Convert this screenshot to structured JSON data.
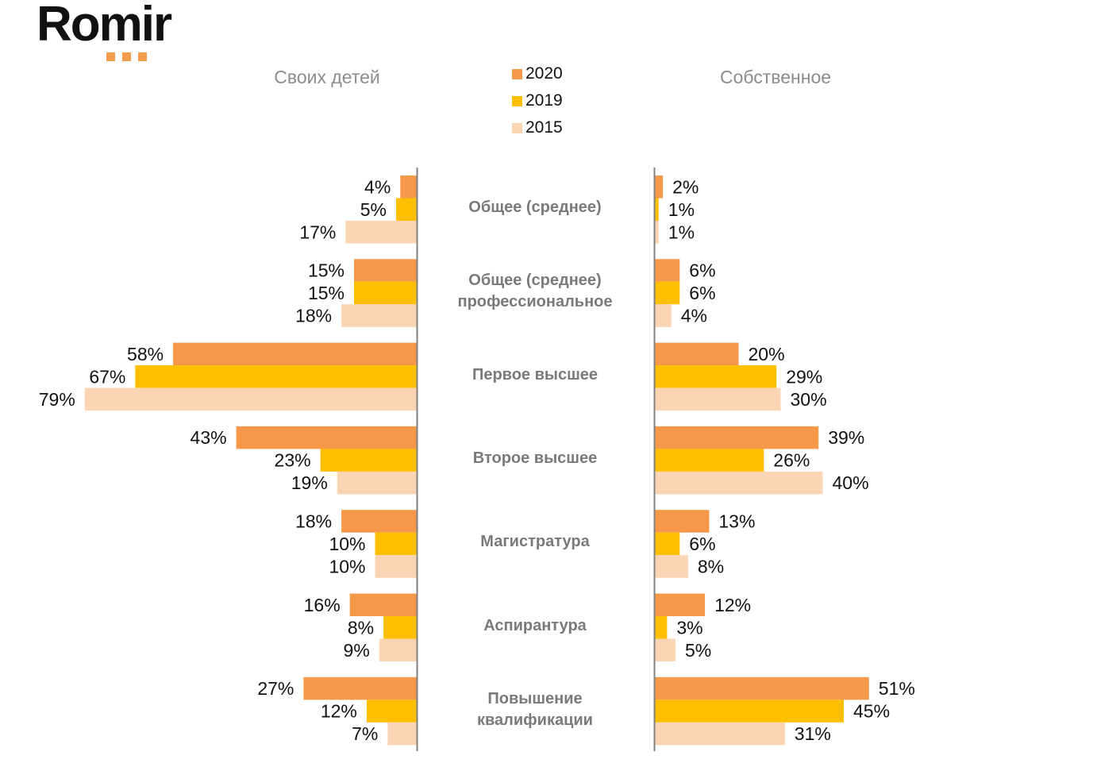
{
  "brand": {
    "name": "Romir",
    "text_color": "#111111",
    "dot_color": "#f39c4b"
  },
  "legend": [
    {
      "label": "2020",
      "color": "#f5984a"
    },
    {
      "label": "2019",
      "color": "#fdbf00"
    },
    {
      "label": "2015",
      "color": "#fbd4b4"
    }
  ],
  "chart_data": {
    "type": "bar",
    "orientation": "horizontal-butterfly",
    "categories": [
      "Общее (среднее)",
      "Общее (среднее) профессиональное",
      "Первое высшее",
      "Второе высшее",
      "Магистратура",
      "Аспирантура",
      "Повышение квалификации"
    ],
    "category_lines": [
      [
        "Общее (среднее)"
      ],
      [
        "Общее (среднее)",
        "профессиональное"
      ],
      [
        "Первое высшее"
      ],
      [
        "Второе высшее"
      ],
      [
        "Магистратура"
      ],
      [
        "Аспирантура"
      ],
      [
        "Повышение",
        "квалификации"
      ]
    ],
    "panels": [
      {
        "title": "Своих детей",
        "direction": "left",
        "series": [
          {
            "name": "2020",
            "values": [
              4,
              15,
              58,
              43,
              18,
              16,
              27
            ]
          },
          {
            "name": "2019",
            "values": [
              5,
              15,
              67,
              23,
              10,
              8,
              12
            ]
          },
          {
            "name": "2015",
            "values": [
              17,
              18,
              79,
              19,
              10,
              9,
              7
            ]
          }
        ]
      },
      {
        "title": "Собственное",
        "direction": "right",
        "series": [
          {
            "name": "2020",
            "values": [
              2,
              6,
              20,
              39,
              13,
              12,
              51
            ]
          },
          {
            "name": "2019",
            "values": [
              1,
              6,
              29,
              26,
              6,
              3,
              45
            ]
          },
          {
            "name": "2015",
            "values": [
              1,
              4,
              30,
              40,
              8,
              5,
              31
            ]
          }
        ]
      }
    ],
    "value_suffix": "%",
    "xlim": [
      0,
      100
    ]
  }
}
